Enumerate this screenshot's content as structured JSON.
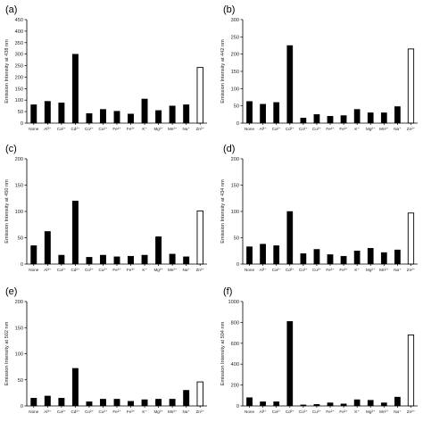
{
  "chart_data": [
    {
      "type": "bar",
      "panel": "(a)",
      "ylabel": "Emission Intensity at 438 nm",
      "ylim": [
        0,
        450
      ],
      "yticks": [
        0,
        50,
        100,
        150,
        200,
        250,
        300,
        350,
        400,
        450
      ],
      "categories": [
        "None",
        "Al³⁺",
        "Ca²⁺",
        "Cd²⁺",
        "Co²⁺",
        "Cu²⁺",
        "Fe²⁺",
        "Fe³⁺",
        "K⁺",
        "Mg²⁺",
        "Mn²⁺",
        "Na⁺",
        "Zn²⁺"
      ],
      "values": [
        80,
        95,
        88,
        300,
        42,
        60,
        52,
        40,
        105,
        55,
        75,
        80,
        242
      ],
      "highlight_index": 12,
      "grid": false
    },
    {
      "type": "bar",
      "panel": "(b)",
      "ylabel": "Emission Intensity at 442 nm",
      "ylim": [
        0,
        300
      ],
      "yticks": [
        0,
        50,
        100,
        150,
        200,
        250,
        300
      ],
      "categories": [
        "None",
        "Al³⁺",
        "Ca²⁺",
        "Cd²⁺",
        "Co²⁺",
        "Cu²⁺",
        "Fe²⁺",
        "Fe³⁺",
        "K⁺",
        "Mg²⁺",
        "Mn²⁺",
        "Na⁺",
        "Zn²⁺"
      ],
      "values": [
        63,
        55,
        60,
        225,
        15,
        25,
        20,
        22,
        40,
        30,
        30,
        48,
        215
      ],
      "highlight_index": 12,
      "grid": false
    },
    {
      "type": "bar",
      "panel": "(c)",
      "ylabel": "Emission Intensity at  450 nm",
      "ylim": [
        0,
        200
      ],
      "yticks": [
        0,
        50,
        100,
        150,
        200
      ],
      "categories": [
        "None",
        "Al³⁺",
        "Ca²⁺",
        "Cd²⁺",
        "Co²⁺",
        "Cu²⁺",
        "Fe²⁺",
        "Fe³⁺",
        "K⁺",
        "Mg²⁺",
        "Mn²⁺",
        "Na⁺",
        "Zn²⁺"
      ],
      "values": [
        35,
        62,
        17,
        120,
        13,
        17,
        14,
        15,
        17,
        52,
        19,
        14,
        101
      ],
      "highlight_index": 12,
      "grid": false
    },
    {
      "type": "bar",
      "panel": "(d)",
      "ylabel": "Emission Intensity at 434 nm",
      "ylim": [
        0,
        200
      ],
      "yticks": [
        0,
        50,
        100,
        150,
        200
      ],
      "categories": [
        "None",
        "Al³⁺",
        "Ca²⁺",
        "Cd²⁺",
        "Co²⁺",
        "Cu²⁺",
        "Fe²⁺",
        "Fe³⁺",
        "K⁺",
        "Mg²⁺",
        "Mn²⁺",
        "Na⁺",
        "Zn²⁺"
      ],
      "values": [
        33,
        38,
        35,
        100,
        20,
        28,
        18,
        15,
        25,
        30,
        22,
        27,
        97
      ],
      "highlight_index": 12,
      "grid": false
    },
    {
      "type": "bar",
      "panel": "(e)",
      "ylabel": "Emission Intensity at 502 nm",
      "ylim": [
        0,
        200
      ],
      "yticks": [
        0,
        50,
        100,
        150,
        200
      ],
      "categories": [
        "None",
        "Al³⁺",
        "Ca²⁺",
        "Cd²⁺",
        "Co²⁺",
        "Cu²⁺",
        "Fe²⁺",
        "Fe³⁺",
        "K⁺",
        "Mg²⁺",
        "Mn²⁺",
        "Na⁺",
        "Zn²⁺"
      ],
      "values": [
        15,
        19,
        15,
        72,
        8,
        13,
        13,
        9,
        12,
        13,
        13,
        30,
        46
      ],
      "highlight_index": 12,
      "grid": false
    },
    {
      "type": "bar",
      "panel": "(f)",
      "ylabel": "Emission Intensity at 504 nm",
      "ylim": [
        0,
        1000
      ],
      "yticks": [
        0,
        200,
        400,
        600,
        800,
        1000
      ],
      "categories": [
        "None",
        "Al³⁺",
        "Ca²⁺",
        "Cd²⁺",
        "Co²⁺",
        "Cu²⁺",
        "Fe²⁺",
        "Fe³⁺",
        "K⁺",
        "Mg²⁺",
        "Mn²⁺",
        "Na⁺",
        "Zn²⁺"
      ],
      "values": [
        80,
        40,
        40,
        810,
        10,
        15,
        30,
        20,
        60,
        55,
        30,
        85,
        680
      ],
      "highlight_index": 12,
      "grid": false
    }
  ],
  "colors": {
    "bar_fill": "#000000",
    "highlight_fill": "#ffffff",
    "highlight_stroke": "#000000",
    "axis": "#000000",
    "background": "#ffffff"
  }
}
